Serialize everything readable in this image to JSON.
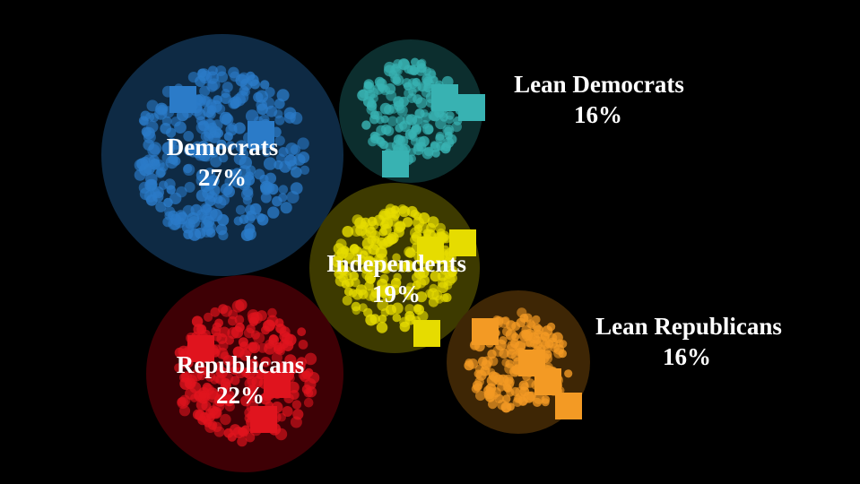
{
  "chart_data": {
    "type": "bubble-cluster",
    "title": "",
    "groups": [
      {
        "name": "Democrats",
        "value": 27,
        "label": "27%",
        "color": "#2b7bc8",
        "glow": "#0e2a44"
      },
      {
        "name": "Lean Democrats",
        "value": 16,
        "label": "16%",
        "color": "#38b2b2",
        "glow": "#0c2e2e"
      },
      {
        "name": "Independents",
        "value": 19,
        "label": "19%",
        "color": "#e6dc00",
        "glow": "#3d3a00"
      },
      {
        "name": "Republicans",
        "value": 22,
        "label": "22%",
        "color": "#e0141e",
        "glow": "#3e0005"
      },
      {
        "name": "Lean Republicans",
        "value": 16,
        "label": "16%",
        "color": "#f39a24",
        "glow": "#3e2605"
      }
    ]
  }
}
